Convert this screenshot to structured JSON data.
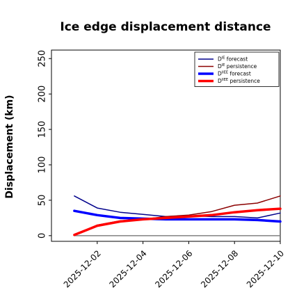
{
  "chart_data": {
    "type": "line",
    "title": "Ice edge displacement distance",
    "xlabel": "",
    "ylabel": "Displacement (km)",
    "x": [
      "2025-12-01",
      "2025-12-02",
      "2025-12-03",
      "2025-12-04",
      "2025-12-05",
      "2025-12-06",
      "2025-12-07",
      "2025-12-08",
      "2025-12-09",
      "2025-12-10"
    ],
    "xticks": [
      "2025-12-02",
      "2025-12-04",
      "2025-12-06",
      "2025-12-08",
      "2025-12-10"
    ],
    "xlim": [
      "2025-11-30",
      "2025-12-10"
    ],
    "yticks": [
      0,
      50,
      100,
      150,
      200,
      250
    ],
    "ylim": [
      -8,
      262
    ],
    "grid": false,
    "legend_position": "top-right",
    "highlight_tick": {
      "label": "2025-12-02",
      "color": "#228b22"
    },
    "baseline": 0,
    "series": [
      {
        "name": "D^IE_avg forecast",
        "legend_main": "D",
        "legend_sup": "IE",
        "legend_rest": "forecast",
        "color": "#00008b",
        "width": 1.5,
        "values": [
          56,
          39,
          33,
          30,
          27,
          28,
          27,
          27,
          25,
          32
        ]
      },
      {
        "name": "D^IE_avg persistence",
        "legend_main": "D",
        "legend_sup": "IE",
        "legend_rest": "persistence",
        "color": "#8b0000",
        "width": 1.5,
        "values": [
          1,
          15,
          21,
          23,
          27,
          29,
          34,
          43,
          46,
          56
        ]
      },
      {
        "name": "D^IIEE_avg forecast",
        "legend_main": "D",
        "legend_sup": "IIEE",
        "legend_rest": "forecast",
        "color": "#0000ff",
        "width": 3.5,
        "values": [
          35,
          29,
          25,
          24,
          23,
          23,
          23,
          23,
          22,
          20
        ]
      },
      {
        "name": "D^IIEE_avg persistence",
        "legend_main": "D",
        "legend_sup": "IIEE",
        "legend_rest": "persistence",
        "color": "#ff0000",
        "width": 3.5,
        "values": [
          1,
          14,
          20,
          23,
          25,
          27,
          29,
          33,
          36,
          38
        ]
      }
    ]
  }
}
